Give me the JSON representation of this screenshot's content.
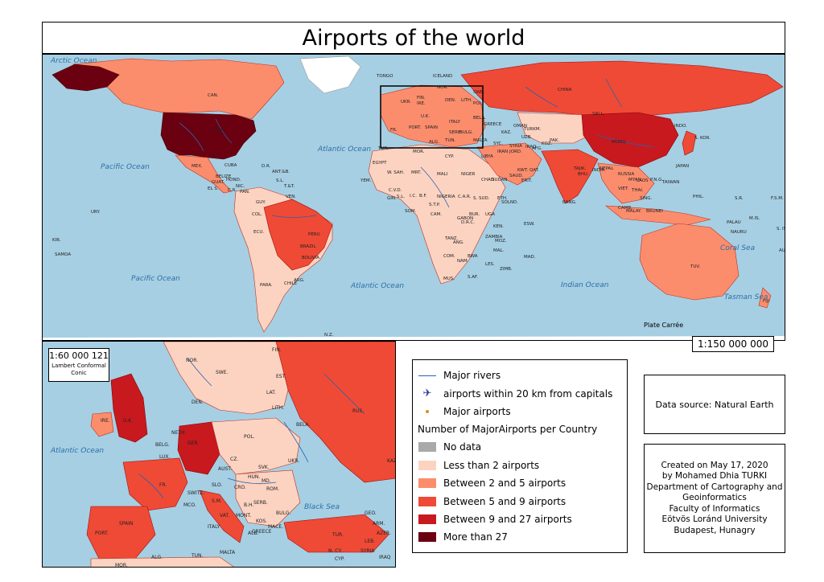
{
  "title": "Airports of the world",
  "world_map": {
    "projection": "Plate Carrée",
    "scale": "1:150 000 000",
    "oceans": [
      "Arctic Ocean",
      "Pacific Ocean",
      "Atlantic Ocean",
      "Pacific Ocean",
      "Atlantic Ocean",
      "Indian Ocean",
      "Coral Sea",
      "Tasman Sea"
    ],
    "country_labels": [
      "CAN.",
      "U.S.A.",
      "MEX.",
      "CUBA",
      "BELIZE",
      "GUAT.",
      "HOND.",
      "NIC.",
      "EL S.",
      "C.R.",
      "PAN.",
      "D.R.",
      "ANT.&B.",
      "S.L.",
      "T.&T.",
      "VEN.",
      "GUY.",
      "COL.",
      "ECU.",
      "PERU",
      "BRAZIL",
      "BOLIVIA",
      "PARA.",
      "CHILE",
      "ARG.",
      "URY.",
      "KIR.",
      "SAMOA",
      "TONGO",
      "ICELAND",
      "NOR.",
      "SWE.",
      "FIN.",
      "DEN.",
      "LITH.",
      "POL.",
      "BELA.",
      "UKR.",
      "IRE.",
      "U.K.",
      "FR.",
      "PORT.",
      "SPAIN",
      "ITALY",
      "SERB.",
      "BULG.",
      "GREECE",
      "TUR.",
      "MOR.",
      "ALG.",
      "TUN.",
      "MALTA",
      "CYP.",
      "LIBYA",
      "EGYPT",
      "W. SAH.",
      "MRT.",
      "MALI",
      "NIGER",
      "CHAD",
      "SUDAN",
      "ERIT.",
      "YEM.",
      "C.V.D.",
      "GIN.",
      "S.L.",
      "I.C.",
      "B.F.",
      "NIGERIA",
      "C.A.R.",
      "S. SUD.",
      "ETH.",
      "SOLND.",
      "SOM.",
      "S.T.P.",
      "CAM.",
      "GABON",
      "D.R.C.",
      "BUR.",
      "UGA",
      "KEN.",
      "TANZ.",
      "ANG.",
      "ZAMBIA",
      "MAL.",
      "MOZ.",
      "COM.",
      "NAM.",
      "BWA",
      "ZIMB.",
      "MAD.",
      "MUS.",
      "S.AF.",
      "LES.",
      "ESW.",
      "SYC.",
      "SYRIA",
      "IRAQ",
      "IRAN",
      "JORD.",
      "KWT.",
      "SAUD.",
      "QAT.",
      "OMAN",
      "KAZ.",
      "UZB.",
      "TURKM.",
      "KGZ.",
      "AFG.",
      "PAK.",
      "TAJIK.",
      "INDIA",
      "NEPAL",
      "BHU.",
      "BANG.",
      "SRI L.",
      "MONG.",
      "CHINA",
      "RUSSIA",
      "MYAN.",
      "LAOS",
      "VIET.",
      "THAI.",
      "CAMB.",
      "MALAY.",
      "SING.",
      "BRUNEI",
      "INDO.",
      "S. KOR.",
      "JAPAN",
      "TAIWAN",
      "PHIL.",
      "PALAU",
      "P.N.G.",
      "S.R.",
      "F.S.M.",
      "M.IS.",
      "NAURU",
      "S. IS.",
      "TUV.",
      "AUS.",
      "FIJI",
      "N.Z.",
      "ANT."
    ]
  },
  "inset_map": {
    "scale": "1:60 000 121",
    "projection": "Lambert Conformal Conic",
    "oceans": [
      "Atlantic Ocean",
      "Black Sea"
    ],
    "country_labels": [
      "NOR.",
      "SWE.",
      "FIN.",
      "EST.",
      "LAT.",
      "LITH.",
      "DEN.",
      "RUS.",
      "BELA.",
      "IRE.",
      "U.K.",
      "NETH.",
      "BELG.",
      "LUX.",
      "GER.",
      "POL.",
      "CZ.",
      "SVK.",
      "UKR.",
      "KAZ.",
      "FR.",
      "SWITZ.",
      "AUST.",
      "SLO.",
      "CRO.",
      "HUN.",
      "MD.",
      "ROM.",
      "S.M.",
      "B.H.",
      "SERB.",
      "BULG.",
      "MONT.",
      "KOS.",
      "MCO.",
      "VAT.",
      "ITALY",
      "MACE.",
      "ALB.",
      "GREECE",
      "GEO.",
      "ARM.",
      "AZER.",
      "TUR.",
      "SYRIA",
      "IRAQ",
      "N. CY.",
      "CYP.",
      "LEB.",
      "PORT.",
      "SPAIN",
      "ALG.",
      "TUN.",
      "MALTA",
      "MOR."
    ]
  },
  "legend": {
    "items": [
      {
        "label": "Major rivers",
        "symbol": "river-line"
      },
      {
        "label": "airports within 20 km from capitals",
        "symbol": "capital-airport-icon"
      },
      {
        "label": "Major airports",
        "symbol": "airport-dot"
      }
    ],
    "heading": "Number of MajorAirports per Country",
    "classes": [
      {
        "label": "No data",
        "color": "#a9a9a9"
      },
      {
        "label": "Less than 2 airports",
        "color": "#fcd3c1"
      },
      {
        "label": "Between 2 and 5 airports",
        "color": "#fb8d6d"
      },
      {
        "label": "Between 5 and 9 airports",
        "color": "#ef4a36"
      },
      {
        "label": "Between 9 and 27 airports",
        "color": "#c8191f"
      },
      {
        "label": "More than 27",
        "color": "#6b0010"
      }
    ]
  },
  "source": "Data source: Natural Earth",
  "credits": [
    "Created on May 17, 2020",
    "by Mohamed Dhia TURKI",
    "Department of Cartography and",
    "Geoinformatics",
    "Faculty of Informatics",
    "Eötvös Loránd University",
    "Budapest, Hunagry"
  ]
}
